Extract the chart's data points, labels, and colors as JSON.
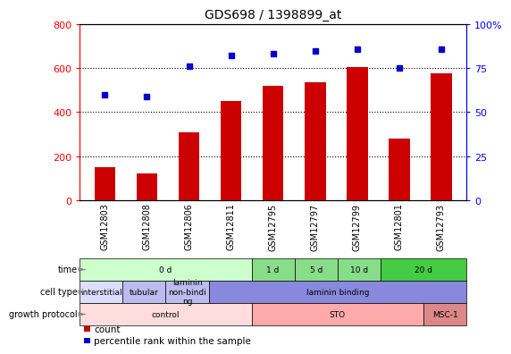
{
  "title": "GDS698 / 1398899_at",
  "samples": [
    "GSM12803",
    "GSM12808",
    "GSM12806",
    "GSM12811",
    "GSM12795",
    "GSM12797",
    "GSM12799",
    "GSM12801",
    "GSM12793"
  ],
  "counts": [
    150,
    120,
    310,
    450,
    520,
    535,
    605,
    280,
    575
  ],
  "percentiles": [
    60,
    59,
    76,
    82,
    83,
    85,
    86,
    75,
    86
  ],
  "bar_color": "#cc0000",
  "dot_color": "#0000cc",
  "ylim_left": [
    0,
    800
  ],
  "ylim_right": [
    0,
    100
  ],
  "yticks_left": [
    0,
    200,
    400,
    600,
    800
  ],
  "yticks_right": [
    0,
    25,
    50,
    75,
    100
  ],
  "yticklabels_right": [
    "0",
    "25",
    "50",
    "75",
    "100%"
  ],
  "time_groups": [
    {
      "label": "0 d",
      "start": 0,
      "end": 4,
      "color": "#ccffcc"
    },
    {
      "label": "1 d",
      "start": 4,
      "end": 5,
      "color": "#88dd88"
    },
    {
      "label": "5 d",
      "start": 5,
      "end": 6,
      "color": "#88dd88"
    },
    {
      "label": "10 d",
      "start": 6,
      "end": 7,
      "color": "#88dd88"
    },
    {
      "label": "20 d",
      "start": 7,
      "end": 9,
      "color": "#44cc44"
    }
  ],
  "cell_type_groups": [
    {
      "label": "interstitial",
      "start": 0,
      "end": 1,
      "color": "#ddddff"
    },
    {
      "label": "tubular",
      "start": 1,
      "end": 2,
      "color": "#bbbbee"
    },
    {
      "label": "laminin\nnon-bindi\nng",
      "start": 2,
      "end": 3,
      "color": "#bbbbee"
    },
    {
      "label": "laminin binding",
      "start": 3,
      "end": 9,
      "color": "#8888dd"
    }
  ],
  "growth_groups": [
    {
      "label": "control",
      "start": 0,
      "end": 4,
      "color": "#ffdddd"
    },
    {
      "label": "STO",
      "start": 4,
      "end": 8,
      "color": "#ffaaaa"
    },
    {
      "label": "MSC-1",
      "start": 8,
      "end": 9,
      "color": "#dd8888"
    }
  ],
  "row_labels": [
    "time",
    "cell type",
    "growth protocol"
  ],
  "legend_items": [
    {
      "color": "#cc0000",
      "label": "count"
    },
    {
      "color": "#0000cc",
      "label": "percentile rank within the sample"
    }
  ]
}
